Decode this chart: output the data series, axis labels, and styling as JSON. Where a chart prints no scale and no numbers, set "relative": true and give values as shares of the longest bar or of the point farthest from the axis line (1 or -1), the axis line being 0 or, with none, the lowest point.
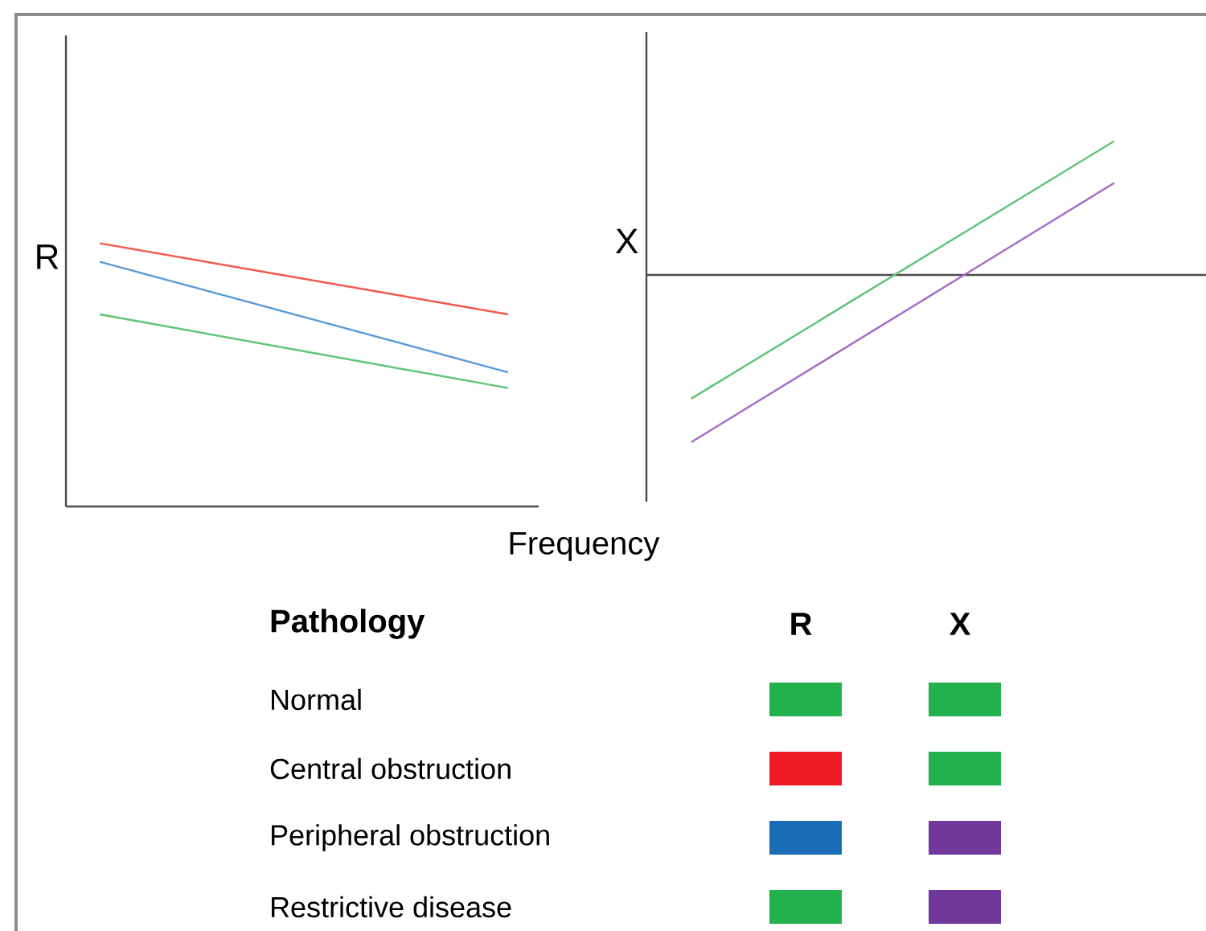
{
  "chart_data": [
    {
      "type": "line",
      "xlabel": "Frequency",
      "ylabel": "R",
      "relative": true,
      "categories": [
        null,
        null
      ],
      "series": [
        {
          "color": "#f4584c",
          "values": [
            1,
            0.73
          ]
        },
        {
          "color": "#5a9ad6",
          "values": [
            0.93,
            0.51
          ]
        },
        {
          "color": "#5fc47a",
          "values": [
            0.73,
            0.45
          ]
        }
      ]
    },
    {
      "type": "line",
      "ylabel": "X",
      "relative": true,
      "categories": [
        null,
        null
      ],
      "series": [
        {
          "color": "#5fc47a",
          "values": [
            -0.74,
            0.8
          ]
        },
        {
          "color": "#a46bc9",
          "values": [
            -1,
            0.55
          ]
        }
      ]
    },
    {
      "type": "other",
      "legend_title": "Pathology",
      "categories": [
        "Normal",
        "Central obstruction",
        "Peripheral obstruction",
        "Restrictive disease"
      ],
      "annotations": [
        "R",
        "X"
      ]
    }
  ]
}
